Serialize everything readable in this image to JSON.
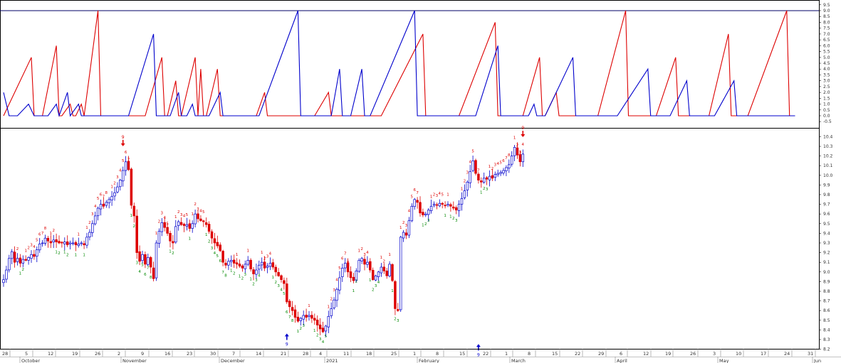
{
  "chart_data": [
    {
      "type": "line",
      "panel": "indicator",
      "title": "",
      "grid": false,
      "ylim": [
        -0.5,
        9.5
      ],
      "y_ticks": [
        "9.5",
        "9.0",
        "8.5",
        "8.0",
        "7.5",
        "7.0",
        "6.5",
        "6.0",
        "5.5",
        "5.0",
        "4.5",
        "4.0",
        "3.5",
        "3.0",
        "2.5",
        "2.0",
        "1.5",
        "1.0",
        "0.5",
        "0.0",
        "-0.5"
      ],
      "reference_line": 9,
      "colors": {
        "red": "#dd0000",
        "blue": "#0000cc"
      },
      "series": [
        {
          "color": "red",
          "points": [
            [
              0,
              0
            ],
            [
              10,
              5
            ],
            [
              11,
              0
            ],
            [
              14,
              0
            ],
            [
              19,
              6
            ],
            [
              20,
              0
            ],
            [
              21,
              0
            ],
            [
              24,
              1
            ],
            [
              25,
              0
            ],
            [
              26,
              0
            ],
            [
              28,
              1
            ],
            [
              29,
              0
            ],
            [
              34,
              9
            ],
            [
              35,
              0
            ],
            [
              51,
              0
            ],
            [
              57,
              5
            ],
            [
              58,
              0
            ],
            [
              59,
              0
            ],
            [
              62,
              3
            ],
            [
              63,
              0
            ],
            [
              64,
              0
            ],
            [
              69,
              5
            ],
            [
              70,
              0
            ],
            [
              71,
              4
            ],
            [
              72,
              0
            ],
            [
              73,
              0
            ],
            [
              77,
              4
            ],
            [
              78,
              0
            ],
            [
              91,
              0
            ],
            [
              94,
              2
            ],
            [
              95,
              0
            ],
            [
              112,
              0
            ],
            [
              117,
              2
            ],
            [
              118,
              0
            ],
            [
              136,
              0
            ],
            [
              151,
              7
            ],
            [
              152,
              0
            ],
            [
              164,
              0
            ],
            [
              177,
              8
            ],
            [
              178,
              0
            ],
            [
              187,
              0
            ],
            [
              193,
              5
            ],
            [
              194,
              0
            ],
            [
              195,
              0
            ],
            [
              199,
              2
            ],
            [
              200,
              0
            ],
            [
              214,
              0
            ],
            [
              224,
              9
            ],
            [
              225,
              0
            ],
            [
              235,
              0
            ],
            [
              242,
              5
            ],
            [
              243,
              0
            ],
            [
              254,
              0
            ],
            [
              261,
              7
            ],
            [
              262,
              0
            ],
            [
              268,
              0
            ],
            [
              282,
              9
            ],
            [
              283,
              0
            ],
            [
              285,
              0
            ]
          ]
        },
        {
          "color": "blue",
          "points": [
            [
              0,
              2
            ],
            [
              2,
              0
            ],
            [
              5,
              0
            ],
            [
              9,
              1
            ],
            [
              11,
              0
            ],
            [
              16,
              0
            ],
            [
              19,
              1
            ],
            [
              20,
              0
            ],
            [
              23,
              2
            ],
            [
              24,
              0
            ],
            [
              27,
              1
            ],
            [
              28,
              0
            ],
            [
              45,
              0
            ],
            [
              54,
              7
            ],
            [
              55,
              0
            ],
            [
              60,
              0
            ],
            [
              63,
              2
            ],
            [
              64,
              0
            ],
            [
              66,
              0
            ],
            [
              68,
              1
            ],
            [
              69,
              0
            ],
            [
              74,
              0
            ],
            [
              78,
              2
            ],
            [
              79,
              0
            ],
            [
              92,
              0
            ],
            [
              106,
              9
            ],
            [
              107,
              0
            ],
            [
              118,
              0
            ],
            [
              121,
              4
            ],
            [
              122,
              0
            ],
            [
              125,
              0
            ],
            [
              129,
              4
            ],
            [
              130,
              0
            ],
            [
              132,
              0
            ],
            [
              148,
              9
            ],
            [
              149,
              0
            ],
            [
              170,
              0
            ],
            [
              178,
              6
            ],
            [
              179,
              0
            ],
            [
              189,
              0
            ],
            [
              191,
              1
            ],
            [
              192,
              0
            ],
            [
              195,
              0
            ],
            [
              205,
              5
            ],
            [
              206,
              0
            ],
            [
              221,
              0
            ],
            [
              232,
              4
            ],
            [
              233,
              0
            ],
            [
              240,
              0
            ],
            [
              246,
              3
            ],
            [
              247,
              0
            ],
            [
              256,
              0
            ],
            [
              263,
              3
            ],
            [
              264,
              0
            ],
            [
              285,
              0
            ]
          ]
        }
      ]
    },
    {
      "type": "candlestick",
      "panel": "price",
      "title": "",
      "grid": false,
      "ylim": [
        8.2,
        10.5
      ],
      "y_ticks": [
        "10.4",
        "10.3",
        "10.2",
        "10.1",
        "10.0",
        "9.9",
        "9.8",
        "9.7",
        "9.6",
        "9.5",
        "9.4",
        "9.3",
        "9.2",
        "9.1",
        "9.0",
        "8.9",
        "8.8",
        "8.7",
        "8.6",
        "8.5",
        "8.4",
        "8.3",
        "8.2"
      ],
      "x_ticks": [
        "28",
        "5",
        "12",
        "19",
        "26",
        "2",
        "9",
        "16",
        "23",
        "30",
        "7",
        "14",
        "21",
        "28",
        "4",
        "11",
        "18",
        "25",
        "1",
        "8",
        "15",
        "22",
        "1",
        "8",
        "15",
        "22",
        "29",
        "6",
        "12",
        "19",
        "26",
        "3",
        "10",
        "17",
        "24",
        "31"
      ],
      "month_labels": [
        "October",
        "November",
        "December",
        "2021",
        "February",
        "March",
        "April",
        "May",
        "Jun"
      ],
      "colors": {
        "up": "#0000cc",
        "down": "#dd0000",
        "up_fill": "#ffffff",
        "count_up": "#dd0000",
        "count_down": "#008800"
      },
      "close": [
        8.92,
        9.02,
        9.14,
        9.21,
        9.1,
        9.14,
        9.09,
        9.13,
        9.12,
        9.15,
        9.18,
        9.16,
        9.23,
        9.29,
        9.3,
        9.35,
        9.32,
        9.3,
        9.33,
        9.31,
        9.3,
        9.3,
        9.31,
        9.28,
        9.3,
        9.3,
        9.28,
        9.29,
        9.3,
        9.28,
        9.36,
        9.41,
        9.5,
        9.58,
        9.66,
        9.7,
        9.68,
        9.72,
        9.75,
        9.78,
        9.82,
        9.88,
        9.95,
        10.05,
        10.14,
        10.06,
        9.69,
        9.58,
        9.2,
        9.11,
        9.18,
        9.08,
        9.15,
        9.05,
        8.93,
        9.3,
        9.42,
        9.51,
        9.46,
        9.4,
        9.32,
        9.3,
        9.47,
        9.52,
        9.49,
        9.48,
        9.49,
        9.45,
        9.5,
        9.6,
        9.55,
        9.53,
        9.52,
        9.49,
        9.42,
        9.35,
        9.3,
        9.27,
        9.22,
        9.1,
        9.07,
        9.11,
        9.12,
        9.09,
        9.08,
        9.06,
        9.04,
        9.08,
        9.12,
        9.03,
        8.98,
        9.02,
        9.07,
        9.1,
        9.04,
        9.06,
        9.09,
        9.05,
        9.0,
        8.96,
        8.92,
        8.88,
        8.69,
        8.64,
        8.6,
        8.53,
        8.49,
        8.52,
        8.55,
        8.53,
        8.55,
        8.52,
        8.5,
        8.45,
        8.41,
        8.38,
        8.44,
        8.54,
        8.62,
        8.71,
        8.82,
        8.94,
        9.04,
        9.09,
        9.0,
        8.94,
        8.91,
        9.01,
        9.12,
        9.14,
        9.08,
        9.1,
        9.02,
        8.92,
        8.96,
        9.0,
        9.05,
        9.01,
        8.96,
        9.08,
        8.91,
        8.62,
        8.6,
        9.36,
        9.41,
        9.38,
        9.53,
        9.68,
        9.75,
        9.72,
        9.61,
        9.59,
        9.6,
        9.64,
        9.68,
        9.7,
        9.69,
        9.71,
        9.7,
        9.69,
        9.7,
        9.68,
        9.66,
        9.64,
        9.7,
        9.76,
        9.84,
        9.93,
        10.04,
        10.15,
        10.02,
        9.95,
        9.93,
        9.97,
        9.96,
        9.99,
        9.97,
        10.01,
        10.02,
        10.03,
        10.05,
        10.08,
        10.11,
        10.2,
        10.29,
        10.21,
        10.14,
        10.22
      ],
      "tomark": {
        "sell_setup": {
          "index": 43,
          "label": "9"
        },
        "buy_setup": [
          {
            "index": 102,
            "label": "9"
          },
          {
            "index": 171,
            "label": "9"
          }
        ],
        "sell_setup_end": {
          "index": 288,
          "label": "9"
        }
      }
    }
  ]
}
